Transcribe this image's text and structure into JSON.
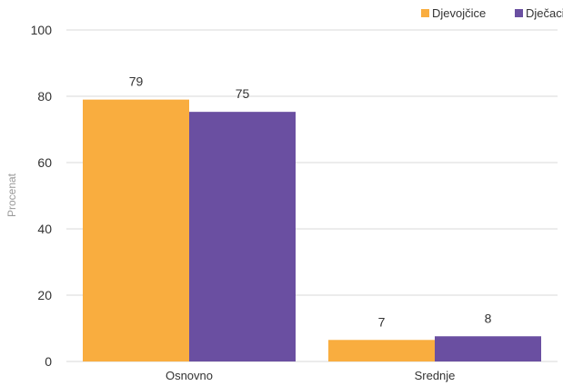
{
  "chart_data": {
    "type": "bar",
    "title": "",
    "xlabel": "",
    "ylabel": "Procenat",
    "ylim": [
      0,
      100
    ],
    "yticks": [
      0,
      20,
      40,
      60,
      80,
      100
    ],
    "grid": true,
    "legend_position": "top-right",
    "categories": [
      "Osnovno",
      "Srednje"
    ],
    "series": [
      {
        "name": "Djevojčice",
        "color": "#f9ad3f",
        "values": [
          79,
          6.5
        ],
        "labels": [
          "79",
          "7"
        ]
      },
      {
        "name": "Dječaci",
        "color": "#6a4fa1",
        "values": [
          75.3,
          7.6
        ],
        "labels": [
          "75",
          "8"
        ]
      }
    ]
  }
}
